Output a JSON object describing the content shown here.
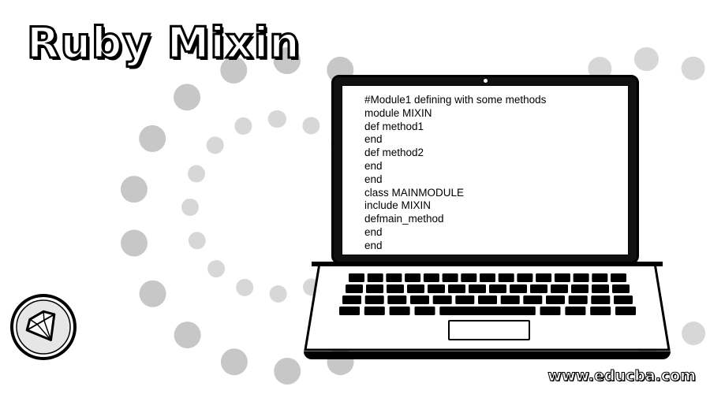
{
  "title": "Ruby Mixin",
  "code_lines": [
    "#Module1 defining with some methods",
    "module MIXIN",
    "def method1",
    "end",
    "def method2",
    "end",
    "end",
    "class MAINMODULE",
    "include MIXIN",
    "defmain_method",
    "end",
    "end"
  ],
  "watermark": "www.educba.com",
  "logo_icon": "ruby-gem-icon",
  "colors": {
    "background": "#ffffff",
    "ink": "#000000",
    "halftone": "#9a9a9a"
  }
}
